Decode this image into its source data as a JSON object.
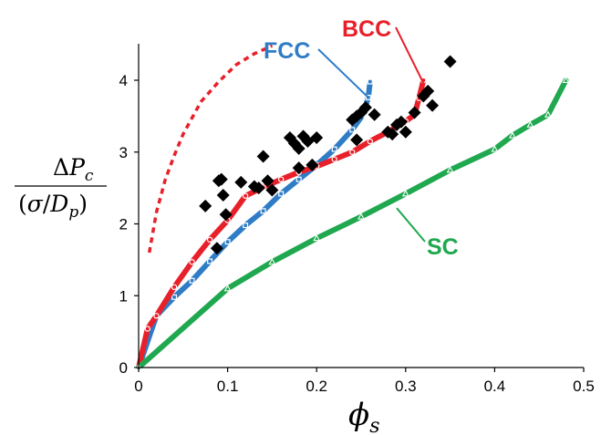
{
  "chart_data": {
    "type": "scatter",
    "xlim": [
      0,
      0.5
    ],
    "ylim": [
      0,
      4.3
    ],
    "x_ticks": [
      "0",
      "0.1",
      "0.2",
      "0.3",
      "0.4",
      "0.5"
    ],
    "y_ticks": [
      "0",
      "1",
      "2",
      "3",
      "4"
    ],
    "xlabel": {
      "symbol": "ϕ",
      "sub": "s"
    },
    "ylabel": {
      "numerator": {
        "delta": "Δ",
        "symbol": "P",
        "sub": "c"
      },
      "denominator": {
        "open": "(",
        "sigma": "σ",
        "slash": "/",
        "symbol": "D",
        "sub": "p",
        "close": ")"
      }
    },
    "grid": false,
    "series": [
      {
        "name": "FCC",
        "color": "#2f7cc6",
        "line_style": "solid",
        "marker": "square",
        "points": [
          [
            0,
            0
          ],
          [
            0.02,
            0.72
          ],
          [
            0.04,
            0.98
          ],
          [
            0.06,
            1.21
          ],
          [
            0.08,
            1.48
          ],
          [
            0.1,
            1.75
          ],
          [
            0.12,
            1.98
          ],
          [
            0.14,
            2.18
          ],
          [
            0.16,
            2.42
          ],
          [
            0.18,
            2.62
          ],
          [
            0.2,
            2.82
          ],
          [
            0.22,
            3.04
          ],
          [
            0.24,
            3.31
          ],
          [
            0.252,
            3.52
          ],
          [
            0.258,
            3.76
          ],
          [
            0.26,
            3.98
          ]
        ]
      },
      {
        "name": "BCC",
        "color": "#e8202a",
        "line_style": "solid",
        "marker": "circle",
        "points": [
          [
            0,
            0
          ],
          [
            0.01,
            0.54
          ],
          [
            0.02,
            0.72
          ],
          [
            0.04,
            1.12
          ],
          [
            0.06,
            1.47
          ],
          [
            0.08,
            1.78
          ],
          [
            0.1,
            2.05
          ],
          [
            0.12,
            2.39
          ],
          [
            0.14,
            2.51
          ],
          [
            0.16,
            2.62
          ],
          [
            0.18,
            2.72
          ],
          [
            0.2,
            2.8
          ],
          [
            0.22,
            2.9
          ],
          [
            0.24,
            3.0
          ],
          [
            0.26,
            3.15
          ],
          [
            0.28,
            3.28
          ],
          [
            0.3,
            3.43
          ],
          [
            0.31,
            3.52
          ],
          [
            0.315,
            3.75
          ],
          [
            0.32,
            4.0
          ]
        ]
      },
      {
        "name": "SC",
        "color": "#1fa84f",
        "line_style": "solid",
        "marker": "triangle",
        "points": [
          [
            0,
            0
          ],
          [
            0.1,
            1.1
          ],
          [
            0.15,
            1.47
          ],
          [
            0.2,
            1.8
          ],
          [
            0.25,
            2.1
          ],
          [
            0.3,
            2.42
          ],
          [
            0.35,
            2.75
          ],
          [
            0.4,
            3.04
          ],
          [
            0.42,
            3.23
          ],
          [
            0.44,
            3.38
          ],
          [
            0.46,
            3.52
          ],
          [
            0.48,
            4.0
          ]
        ]
      },
      {
        "name": "",
        "color": "#e8202a",
        "line_style": "dashed",
        "marker": "none",
        "points": [
          [
            0.012,
            1.6
          ],
          [
            0.02,
            2.16
          ],
          [
            0.03,
            2.62
          ],
          [
            0.04,
            2.95
          ],
          [
            0.05,
            3.25
          ],
          [
            0.07,
            3.7
          ],
          [
            0.09,
            3.98
          ],
          [
            0.11,
            4.22
          ],
          [
            0.13,
            4.37
          ],
          [
            0.15,
            4.48
          ]
        ]
      },
      {
        "name": "",
        "color": "#000000",
        "line_style": "none",
        "marker": "diamond",
        "points": [
          [
            0.088,
            1.66
          ],
          [
            0.09,
            2.6
          ],
          [
            0.093,
            2.62
          ],
          [
            0.095,
            2.4
          ],
          [
            0.098,
            2.13
          ],
          [
            0.075,
            2.25
          ],
          [
            0.115,
            2.58
          ],
          [
            0.13,
            2.52
          ],
          [
            0.135,
            2.5
          ],
          [
            0.14,
            2.94
          ],
          [
            0.145,
            2.6
          ],
          [
            0.15,
            2.47
          ],
          [
            0.17,
            3.2
          ],
          [
            0.175,
            3.12
          ],
          [
            0.18,
            3.05
          ],
          [
            0.185,
            3.22
          ],
          [
            0.19,
            3.15
          ],
          [
            0.18,
            2.78
          ],
          [
            0.195,
            2.82
          ],
          [
            0.2,
            3.2
          ],
          [
            0.24,
            3.45
          ],
          [
            0.245,
            3.5
          ],
          [
            0.25,
            3.55
          ],
          [
            0.255,
            3.62
          ],
          [
            0.265,
            3.52
          ],
          [
            0.245,
            3.17
          ],
          [
            0.28,
            3.28
          ],
          [
            0.285,
            3.25
          ],
          [
            0.29,
            3.38
          ],
          [
            0.295,
            3.42
          ],
          [
            0.3,
            3.28
          ],
          [
            0.31,
            3.55
          ],
          [
            0.32,
            3.78
          ],
          [
            0.325,
            3.85
          ],
          [
            0.33,
            3.65
          ],
          [
            0.35,
            4.26
          ]
        ]
      }
    ],
    "annotations": [
      {
        "text": "FCC",
        "color": "#2f7cc6",
        "points_to": [
          0.258,
          3.76
        ]
      },
      {
        "text": "BCC",
        "color": "#e8202a",
        "points_to": [
          0.32,
          3.96
        ]
      },
      {
        "text": "SC",
        "color": "#1fa84f",
        "points_to": [
          0.29,
          2.22
        ]
      }
    ]
  }
}
